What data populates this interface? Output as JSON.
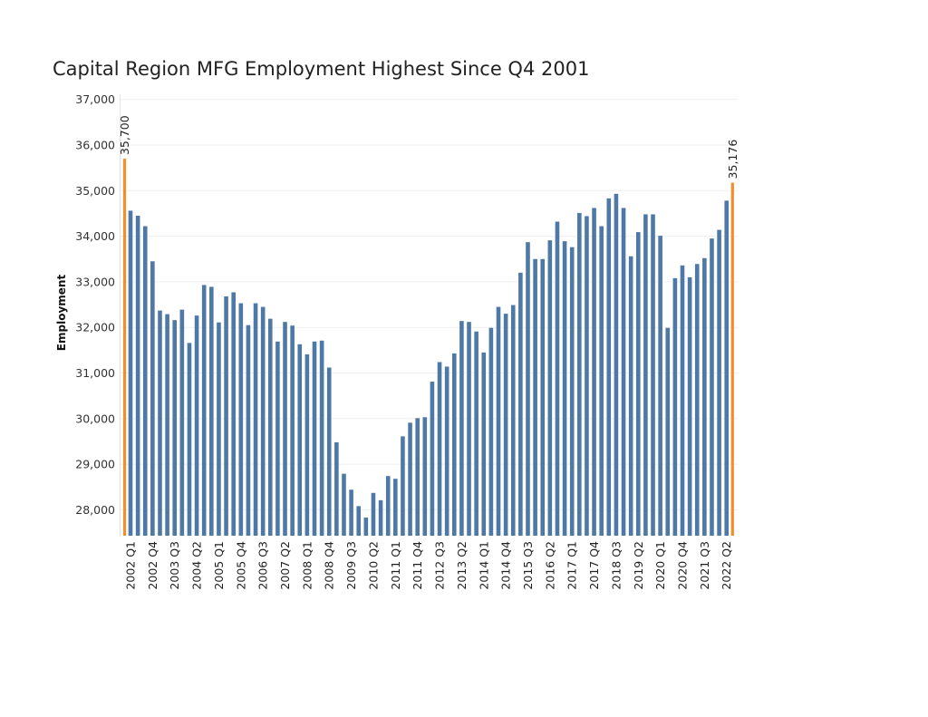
{
  "chart_data": {
    "type": "bar",
    "title": "Capital Region MFG Employment Highest Since Q4 2001",
    "xlabel": "",
    "ylabel": "Employment",
    "ylim": [
      27430,
      37000
    ],
    "yticks": [
      28000,
      29000,
      30000,
      31000,
      32000,
      33000,
      34000,
      35000,
      36000,
      37000
    ],
    "ytick_labels": [
      "28,000",
      "29,000",
      "30,000",
      "31,000",
      "32,000",
      "33,000",
      "34,000",
      "35,000",
      "36,000",
      "37,000"
    ],
    "grid": true,
    "categories": [
      "2002 Q1",
      "2002 Q2",
      "2002 Q3",
      "2002 Q4",
      "2003 Q1",
      "2003 Q2",
      "2003 Q3",
      "2003 Q4",
      "2004 Q1",
      "2004 Q2",
      "2004 Q3",
      "2004 Q4",
      "2005 Q1",
      "2005 Q2",
      "2005 Q3",
      "2005 Q4",
      "2006 Q1",
      "2006 Q2",
      "2006 Q3",
      "2006 Q4",
      "2007 Q1",
      "2007 Q2",
      "2007 Q3",
      "2007 Q4",
      "2008 Q1",
      "2008 Q2",
      "2008 Q3",
      "2008 Q4",
      "2009 Q1",
      "2009 Q2",
      "2009 Q3",
      "2009 Q4",
      "2010 Q1",
      "2010 Q2",
      "2010 Q3",
      "2010 Q4",
      "2011 Q1",
      "2011 Q2",
      "2011 Q3",
      "2011 Q4",
      "2012 Q1",
      "2012 Q2",
      "2012 Q3",
      "2012 Q4",
      "2013 Q1",
      "2013 Q2",
      "2013 Q3",
      "2013 Q4",
      "2014 Q1",
      "2014 Q2",
      "2014 Q3",
      "2014 Q4",
      "2015 Q1",
      "2015 Q2",
      "2015 Q3",
      "2015 Q4",
      "2016 Q1",
      "2016 Q2",
      "2016 Q3",
      "2016 Q4",
      "2017 Q1",
      "2017 Q2",
      "2017 Q3",
      "2017 Q4",
      "2018 Q1",
      "2018 Q2",
      "2018 Q3",
      "2018 Q4",
      "2019 Q1",
      "2019 Q2",
      "2019 Q3",
      "2019 Q4",
      "2020 Q1",
      "2020 Q2",
      "2020 Q3",
      "2020 Q4",
      "2021 Q1",
      "2021 Q2",
      "2021 Q3",
      "2021 Q4",
      "2022 Q1",
      "2022 Q2"
    ],
    "xtick_labels": [
      "2002 Q1",
      "2002 Q4",
      "2003 Q3",
      "2004 Q2",
      "2005 Q1",
      "2005 Q4",
      "2006 Q3",
      "2007 Q2",
      "2008 Q1",
      "2008 Q4",
      "2009 Q3",
      "2010 Q2",
      "2011 Q1",
      "2011 Q4",
      "2012 Q3",
      "2013 Q2",
      "2014 Q1",
      "2014 Q4",
      "2015 Q3",
      "2016 Q2",
      "2017 Q1",
      "2017 Q4",
      "2018 Q3",
      "2019 Q2",
      "2020 Q1",
      "2020 Q4",
      "2021 Q3",
      "2022 Q2"
    ],
    "series": [
      {
        "name": "Employment",
        "color": "#4e79a7",
        "values": [
          34560,
          34450,
          34220,
          33450,
          32370,
          32290,
          32160,
          32390,
          31660,
          32260,
          32930,
          32890,
          32110,
          32680,
          32770,
          32530,
          32050,
          32530,
          32450,
          32190,
          31690,
          32120,
          32040,
          31630,
          31410,
          31690,
          31710,
          31120,
          29480,
          28790,
          28440,
          28080,
          27830,
          28370,
          28210,
          28740,
          28680,
          29610,
          29910,
          30010,
          30030,
          30810,
          31240,
          31140,
          31430,
          32140,
          32120,
          31910,
          31450,
          31990,
          32450,
          32300,
          32490,
          33200,
          33870,
          33500,
          33500,
          33910,
          34320,
          33890,
          33760,
          34510,
          34440,
          34620,
          34220,
          34830,
          34930,
          34620,
          33560,
          34090,
          34480,
          34480,
          34010,
          31990,
          33080,
          33360,
          33100,
          33390,
          33520,
          33950,
          34140,
          34780
        ]
      }
    ],
    "highlights": [
      {
        "name": "start",
        "position": "left",
        "value": 35700,
        "label": "35,700",
        "color": "#f28e2b"
      },
      {
        "name": "end",
        "position": "right",
        "value": 35176,
        "label": "35,176",
        "color": "#f28e2b"
      }
    ],
    "legend": "none"
  }
}
